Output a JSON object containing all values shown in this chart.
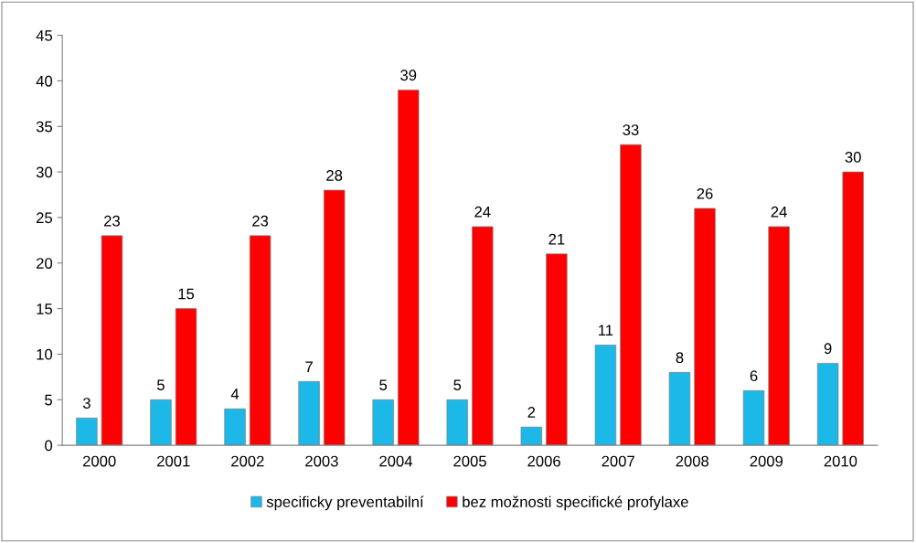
{
  "chart_data": {
    "type": "bar",
    "categories": [
      "2000",
      "2001",
      "2002",
      "2003",
      "2004",
      "2005",
      "2006",
      "2007",
      "2008",
      "2009",
      "2010"
    ],
    "series": [
      {
        "name": "specificky preventabilní",
        "color": "#1cb8e8",
        "values": [
          3,
          5,
          4,
          7,
          5,
          5,
          2,
          11,
          8,
          6,
          9
        ]
      },
      {
        "name": "bez možnosti specifické profylaxe",
        "color": "#ff0000",
        "values": [
          23,
          15,
          23,
          28,
          39,
          24,
          21,
          33,
          26,
          24,
          30
        ]
      }
    ],
    "ylim": [
      0,
      45
    ],
    "yticks": [
      0,
      5,
      10,
      15,
      20,
      25,
      30,
      35,
      40,
      45
    ],
    "grid": false,
    "legend": "bottom",
    "data_labels": true
  }
}
